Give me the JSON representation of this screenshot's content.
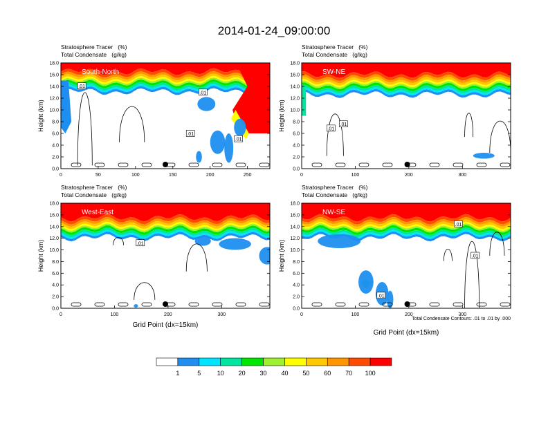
{
  "title": "2014-01-24_09:00:00",
  "colors": {
    "levels": [
      "#ffffff",
      "#1e8ff0",
      "#00e5ff",
      "#00e5a0",
      "#00e600",
      "#a0f032",
      "#ffff00",
      "#ffc800",
      "#ff9600",
      "#ff4b00",
      "#ff0000"
    ],
    "contour": "#000000",
    "marker": "#000000"
  },
  "colorbar": {
    "labels": [
      "1",
      "5",
      "10",
      "20",
      "30",
      "40",
      "50",
      "60",
      "70",
      "100"
    ]
  },
  "contour_note": "Total Condensate Contours: .01 to .01 by .000",
  "chart_data": [
    {
      "type": "heatmap",
      "title": "Stratosphere Tracer   (%)",
      "subtitle": "Total Condensate   (g/kg)",
      "panel_label": "South-North",
      "xlabel": "",
      "ylabel": "Height (km)",
      "xlim": [
        0,
        280
      ],
      "ylim": [
        0,
        18
      ],
      "xticks": [
        "0",
        "50",
        "100",
        "150",
        "200",
        "250"
      ],
      "yticks": [
        "0.0",
        "2.0",
        "4.0",
        "6.0",
        "8.0",
        "10.0",
        "12.0",
        "14.0",
        "16.0",
        "18.0"
      ],
      "contour_labels": [
        ".01",
        ".01",
        ".01",
        ".01"
      ],
      "tracer_top_km": 16.5,
      "marker_x": 140
    },
    {
      "type": "heatmap",
      "title": "Stratosphere Tracer   (%)",
      "subtitle": "Total Condensate   (g/kg)",
      "panel_label": "SW-NE",
      "xlabel": "",
      "ylabel": "Height (km)",
      "xlim": [
        0,
        390
      ],
      "ylim": [
        0,
        18
      ],
      "xticks": [
        "0",
        "100",
        "200",
        "300"
      ],
      "yticks": [
        "0.0",
        "2.0",
        "4.0",
        "6.0",
        "8.0",
        "10.0",
        "12.0",
        "14.0",
        "16.0",
        "18.0"
      ],
      "contour_labels": [
        ".01",
        ".01"
      ],
      "tracer_top_km": 16.0,
      "marker_x": 197
    },
    {
      "type": "heatmap",
      "title": "Stratosphere Tracer   (%)",
      "subtitle": "Total Condensate   (g/kg)",
      "panel_label": "West-East",
      "xlabel": "Grid Point (dx=15km)",
      "ylabel": "Height (km)",
      "xlim": [
        0,
        390
      ],
      "ylim": [
        0,
        18
      ],
      "xticks": [
        "0",
        "100",
        "200",
        "300"
      ],
      "yticks": [
        "0.0",
        "2.0",
        "4.0",
        "6.0",
        "8.0",
        "10.0",
        "12.0",
        "14.0",
        "16.0",
        "18.0"
      ],
      "contour_labels": [
        ".01"
      ],
      "tracer_top_km": 15.5,
      "marker_x": 195
    },
    {
      "type": "heatmap",
      "title": "Stratosphere Tracer   (%)",
      "subtitle": "Total Condensate   (g/kg)",
      "panel_label": "NW-SE",
      "xlabel": "Grid Point (dx=15km)",
      "ylabel": "Height (km)",
      "xlim": [
        0,
        390
      ],
      "ylim": [
        0,
        18
      ],
      "xticks": [
        "0",
        "100",
        "200",
        "300"
      ],
      "yticks": [
        "0.0",
        "2.0",
        "4.0",
        "6.0",
        "8.0",
        "10.0",
        "12.0",
        "14.0",
        "16.0",
        "18.0"
      ],
      "contour_labels": [
        ".01",
        ".01",
        ".01"
      ],
      "tracer_top_km": 15.5,
      "marker_x": 197
    }
  ]
}
